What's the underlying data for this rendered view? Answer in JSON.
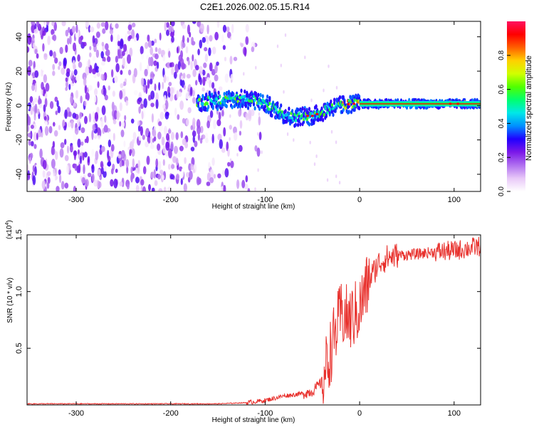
{
  "figure_title": "C2E1.2026.002.05.15.R14",
  "chart_data": [
    {
      "type": "heatmap",
      "title": "C2E1.2026.002.05.15.R14",
      "xlabel": "Height of straight line (km)",
      "ylabel": "Frequency (Hz)",
      "xlim": [
        -352,
        128
      ],
      "ylim": [
        -50,
        49
      ],
      "xticks": [
        -300,
        -200,
        -100,
        0,
        100
      ],
      "yticks": [
        -40,
        -20,
        0,
        20,
        40
      ],
      "colorbar": {
        "label": "Normalized spectral amplitude",
        "range": [
          0,
          1
        ],
        "ticks": [
          0.0,
          0.2,
          0.4,
          0.6,
          0.8
        ],
        "tick_labels": [
          "0.0",
          "0.2",
          "0.4",
          "0.6",
          "0.8"
        ],
        "colors": [
          "#ffffff",
          "#e8c8f8",
          "#b070f0",
          "#7b18e8",
          "#2000ff",
          "#0090ff",
          "#00e8e8",
          "#00ff70",
          "#50ff00",
          "#d0ff00",
          "#ffd000",
          "#ff6000",
          "#ff0000",
          "#ff1060"
        ]
      },
      "ridge": {
        "x": [
          -170,
          -150,
          -130,
          -110,
          -100,
          -90,
          -80,
          -70,
          -60,
          -50,
          -40,
          -30,
          -20,
          -10,
          0,
          20,
          40,
          60,
          80,
          100,
          128
        ],
        "frequency": [
          2,
          3,
          4,
          3,
          1,
          -2,
          -5,
          -7,
          -6,
          -6,
          -4,
          -1,
          0,
          1,
          1,
          1,
          1,
          1,
          1,
          1,
          1
        ]
      },
      "noise_region": {
        "x": [
          -352,
          -140
        ],
        "frequency": [
          -50,
          49
        ]
      }
    },
    {
      "type": "line",
      "xlabel": "Height of straight line (km)",
      "ylabel": "SNR (10 * v/v)",
      "y_multiplier": "(x10",
      "y_multiplier_exp": "4",
      "y_multiplier_close": ")",
      "xlim": [
        -352,
        128
      ],
      "ylim": [
        0,
        1.5
      ],
      "xticks": [
        -300,
        -200,
        -100,
        0,
        100
      ],
      "yticks": [
        0.5,
        1.0,
        1.5
      ],
      "ytick_labels": [
        "0.5",
        "1.0",
        "1.5"
      ],
      "line_color": "#e8302c",
      "series": [
        {
          "name": "SNR",
          "x": [
            -352,
            -300,
            -250,
            -200,
            -150,
            -120,
            -100,
            -90,
            -80,
            -70,
            -60,
            -50,
            -40,
            -30,
            -20,
            -10,
            0,
            10,
            20,
            30,
            40,
            60,
            80,
            100,
            128
          ],
          "values": [
            0.01,
            0.01,
            0.01,
            0.01,
            0.01,
            0.02,
            0.04,
            0.06,
            0.08,
            0.09,
            0.1,
            0.12,
            0.2,
            0.5,
            0.8,
            0.75,
            0.85,
            1.1,
            1.25,
            1.3,
            1.32,
            1.33,
            1.35,
            1.36,
            1.4
          ]
        }
      ]
    }
  ]
}
